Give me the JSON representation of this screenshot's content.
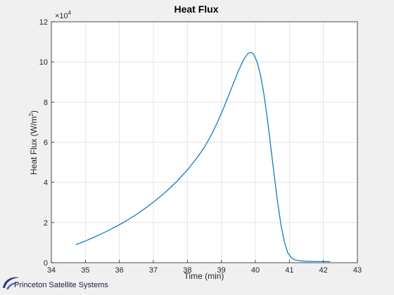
{
  "chart_data": {
    "type": "line",
    "title": "Heat Flux",
    "xlabel": "Time (min)",
    "ylabel_main": "Heat Flux (W/m",
    "ylabel_sup": "2",
    "ylabel_tail": ")",
    "xlim": [
      34,
      43
    ],
    "ylim": [
      0,
      12
    ],
    "xticks": [
      34,
      35,
      36,
      37,
      38,
      39,
      40,
      41,
      42,
      43
    ],
    "yticks": [
      0,
      2,
      4,
      6,
      8,
      10,
      12
    ],
    "y_exponent_base": "×10",
    "y_exponent_power": "4",
    "grid": true,
    "series": [
      {
        "color": "#0072bd",
        "x": [
          34.72,
          35.0,
          35.3,
          35.6,
          35.9,
          36.2,
          36.5,
          36.8,
          37.1,
          37.4,
          37.7,
          38.0,
          38.3,
          38.5,
          38.7,
          38.9,
          39.1,
          39.3,
          39.5,
          39.65,
          39.78,
          39.87,
          39.95,
          40.05,
          40.15,
          40.25,
          40.35,
          40.45,
          40.55,
          40.65,
          40.75,
          40.85,
          40.95,
          41.05,
          41.15,
          41.3,
          41.5,
          41.8,
          42.2
        ],
        "y": [
          0.9,
          1.08,
          1.3,
          1.54,
          1.8,
          2.08,
          2.4,
          2.76,
          3.15,
          3.58,
          4.07,
          4.62,
          5.26,
          5.75,
          6.35,
          7.05,
          7.85,
          8.7,
          9.55,
          10.1,
          10.42,
          10.48,
          10.38,
          10.0,
          9.35,
          8.4,
          7.2,
          5.8,
          4.4,
          3.05,
          1.9,
          1.05,
          0.5,
          0.26,
          0.15,
          0.09,
          0.07,
          0.06,
          0.06
        ]
      }
    ]
  },
  "footer": {
    "logo_text": "Princeton Satellite Systems",
    "logo_icon": "swoosh-logo-icon"
  }
}
